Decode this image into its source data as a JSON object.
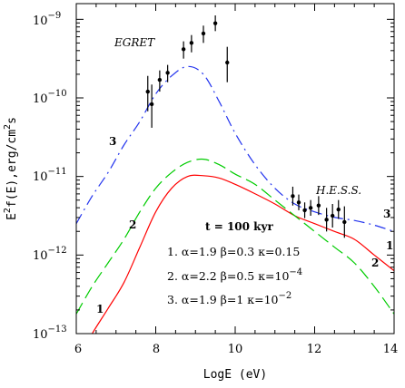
{
  "chart_data": {
    "type": "line",
    "xlabel": "LogE (eV)",
    "ylabel": "E^2 f(E), erg/cm^2 s",
    "xlim": [
      6,
      14
    ],
    "ylim_log10": [
      -13,
      -8.8
    ],
    "yscale": "log",
    "x_ticks": [
      6,
      8,
      10,
      12,
      14
    ],
    "x_tick_labels": [
      "6",
      "8",
      "10",
      "12",
      "14"
    ],
    "y_ticks_log10": [
      -13,
      -12,
      -11,
      -10,
      -9
    ],
    "y_tick_labels": [
      {
        "base": "10",
        "exp": "−13"
      },
      {
        "base": "10",
        "exp": "−12"
      },
      {
        "base": "10",
        "exp": "−11"
      },
      {
        "base": "10",
        "exp": "−10"
      },
      {
        "base": "10",
        "exp": "−9"
      }
    ],
    "ylabel_parts": {
      "pre": "E",
      "sup1": "2",
      "mid": "f(E),erg/cm",
      "sup2": "2",
      "post": "s"
    },
    "series": [
      {
        "name": "1",
        "color": "#ff0000",
        "style": "solid",
        "x": [
          6.0,
          6.4,
          6.8,
          7.2,
          7.6,
          8.0,
          8.4,
          8.8,
          9.2,
          9.6,
          10.0,
          10.5,
          11.0,
          11.5,
          12.0,
          12.5,
          13.0,
          13.5,
          14.0
        ],
        "log10y": [
          -13.35,
          -13.0,
          -12.68,
          -12.35,
          -11.9,
          -11.45,
          -11.15,
          -11.0,
          -10.99,
          -11.02,
          -11.1,
          -11.22,
          -11.35,
          -11.5,
          -11.6,
          -11.7,
          -11.8,
          -12.0,
          -12.2
        ]
      },
      {
        "name": "2",
        "color": "#00cc00",
        "style": "dashed",
        "x": [
          6.0,
          6.4,
          6.8,
          7.2,
          7.6,
          8.0,
          8.4,
          8.8,
          9.2,
          9.6,
          10.0,
          10.5,
          11.0,
          11.5,
          12.0,
          12.5,
          13.0,
          13.5,
          14.0
        ],
        "log10y": [
          -12.75,
          -12.4,
          -12.1,
          -11.8,
          -11.45,
          -11.15,
          -10.95,
          -10.82,
          -10.78,
          -10.85,
          -10.97,
          -11.1,
          -11.3,
          -11.5,
          -11.7,
          -11.9,
          -12.1,
          -12.4,
          -12.75
        ]
      },
      {
        "name": "3",
        "color": "#2233ee",
        "style": "dashdot",
        "x": [
          6.0,
          6.4,
          6.8,
          7.2,
          7.6,
          8.0,
          8.4,
          8.8,
          9.2,
          9.6,
          10.0,
          10.5,
          11.0,
          11.5,
          12.0,
          12.5,
          13.0,
          13.5,
          14.0
        ],
        "log10y": [
          -11.6,
          -11.25,
          -10.95,
          -10.6,
          -10.3,
          -9.95,
          -9.72,
          -9.6,
          -9.7,
          -10.05,
          -10.45,
          -10.85,
          -11.15,
          -11.35,
          -11.45,
          -11.52,
          -11.56,
          -11.62,
          -11.7
        ]
      }
    ],
    "data_sets": [
      {
        "name": "EGRET",
        "points": [
          {
            "x": 7.8,
            "log10y": -9.92,
            "err_lo": 0.25,
            "err_hi": 0.2
          },
          {
            "x": 7.9,
            "log10y": -10.08,
            "err_lo": 0.3,
            "err_hi": 0.25
          },
          {
            "x": 8.1,
            "log10y": -9.77,
            "err_lo": 0.15,
            "err_hi": 0.12
          },
          {
            "x": 8.3,
            "log10y": -9.68,
            "err_lo": 0.12,
            "err_hi": 0.1
          },
          {
            "x": 8.7,
            "log10y": -9.38,
            "err_lo": 0.12,
            "err_hi": 0.1
          },
          {
            "x": 8.9,
            "log10y": -9.3,
            "err_lo": 0.12,
            "err_hi": 0.1
          },
          {
            "x": 9.2,
            "log10y": -9.18,
            "err_lo": 0.12,
            "err_hi": 0.1
          },
          {
            "x": 9.5,
            "log10y": -9.05,
            "err_lo": 0.1,
            "err_hi": 0.1
          },
          {
            "x": 9.8,
            "log10y": -9.55,
            "err_lo": 0.25,
            "err_hi": 0.2
          }
        ]
      },
      {
        "name": "H.E.S.S.",
        "points": [
          {
            "x": 11.45,
            "log10y": -11.25,
            "err_lo": 0.12,
            "err_hi": 0.12
          },
          {
            "x": 11.6,
            "log10y": -11.33,
            "err_lo": 0.1,
            "err_hi": 0.1
          },
          {
            "x": 11.75,
            "log10y": -11.43,
            "err_lo": 0.1,
            "err_hi": 0.1
          },
          {
            "x": 11.9,
            "log10y": -11.4,
            "err_lo": 0.1,
            "err_hi": 0.1
          },
          {
            "x": 12.1,
            "log10y": -11.37,
            "err_lo": 0.12,
            "err_hi": 0.12
          },
          {
            "x": 12.3,
            "log10y": -11.55,
            "err_lo": 0.15,
            "err_hi": 0.15
          },
          {
            "x": 12.45,
            "log10y": -11.5,
            "err_lo": 0.15,
            "err_hi": 0.15
          },
          {
            "x": 12.6,
            "log10y": -11.42,
            "err_lo": 0.12,
            "err_hi": 0.12
          },
          {
            "x": 12.75,
            "log10y": -11.58,
            "err_lo": 0.2,
            "err_hi": 0.2
          }
        ]
      }
    ],
    "annotations": {
      "egret": "EGRET",
      "hess": "H.E.S.S.",
      "time": "t = 100 kyr",
      "curve_label_1": "1",
      "curve_label_2": "2",
      "curve_label_3": "3",
      "param_1": "1.  α=1.9  β=0.3  κ=0.15",
      "param_2_pre": "2.  α=2.2  β=0.5  κ=10",
      "param_2_exp": "−4",
      "param_3_pre": "3.  α=1.9  β=1   κ=10",
      "param_3_exp": "−2"
    }
  }
}
